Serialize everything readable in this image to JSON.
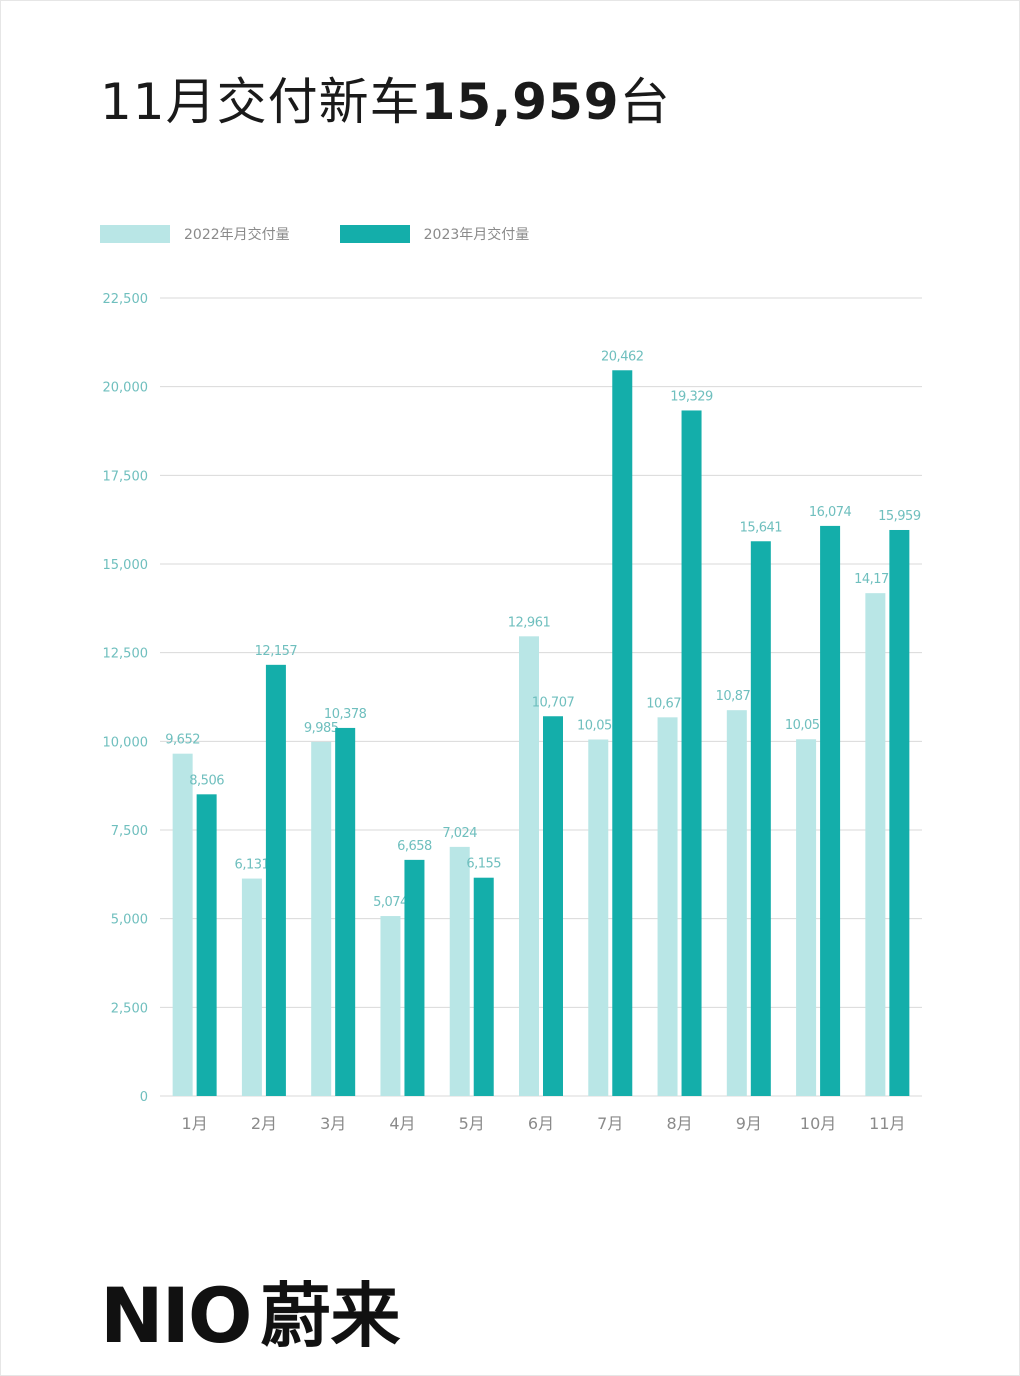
{
  "title": {
    "prefix": "11月交付新车",
    "number": "15,959",
    "suffix": "台"
  },
  "brand": {
    "en": "NIO",
    "cn": "蔚来"
  },
  "colors": {
    "series_2022": "#b9e6e6",
    "series_2023": "#14aeaa",
    "grid": "#d9d9d9",
    "axis_text": "#6fbfbe",
    "category_text": "#8a8a8a"
  },
  "chart_data": {
    "type": "bar",
    "categories": [
      "1月",
      "2月",
      "3月",
      "4月",
      "5月",
      "6月",
      "7月",
      "8月",
      "9月",
      "10月",
      "11月"
    ],
    "series": [
      {
        "name": "2022年月交付量",
        "values": [
          9652,
          6131,
          9985,
          5074,
          7024,
          12961,
          10052,
          10677,
          10878,
          10059,
          14178
        ],
        "labels": [
          "9,652",
          "6,131",
          "9,985",
          "5,074",
          "7,024",
          "12,961",
          "10,052",
          "10,677",
          "10,878",
          "10,059",
          "14,178"
        ]
      },
      {
        "name": "2023年月交付量",
        "values": [
          8506,
          12157,
          10378,
          6658,
          6155,
          10707,
          20462,
          19329,
          15641,
          16074,
          15959
        ],
        "labels": [
          "8,506",
          "12,157",
          "10,378",
          "6,658",
          "6,155",
          "10,707",
          "20,462",
          "19,329",
          "15,641",
          "16,074",
          "15,959"
        ]
      }
    ],
    "yticks": [
      0,
      2500,
      5000,
      7500,
      10000,
      12500,
      15000,
      17500,
      20000,
      22500
    ],
    "ytick_labels": [
      "0",
      "2,500",
      "5,000",
      "7,500",
      "10,000",
      "12,500",
      "15,000",
      "17,500",
      "20,000",
      "22,500"
    ],
    "ylim": [
      0,
      22500
    ],
    "grid": true,
    "legend_position": "top-left",
    "xlabel": "",
    "ylabel": ""
  }
}
